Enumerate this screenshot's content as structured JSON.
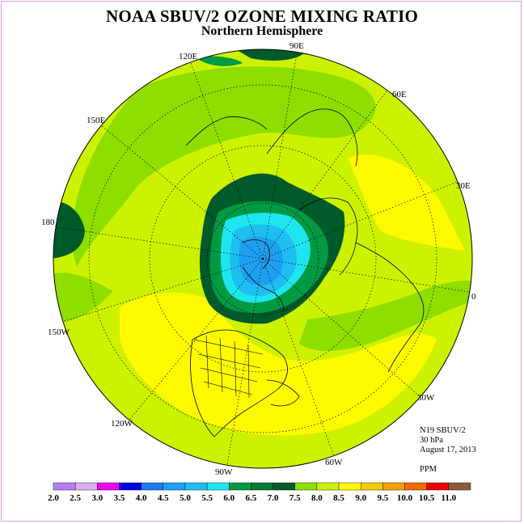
{
  "header": {
    "title": "NOAA SBUV/2 OZONE MIXING RATIO",
    "subtitle": "Northern Hemisphere"
  },
  "map": {
    "projection": "north-polar-stereographic",
    "longitude_labels": [
      "90E",
      "60E",
      "30E",
      "0",
      "30W",
      "60W",
      "90W",
      "120W",
      "150W",
      "180",
      "150E",
      "120E"
    ]
  },
  "info": {
    "satellite": "N19 SBUV/2",
    "level": "30 hPa",
    "date": "August 17, 2013",
    "units": "PPM"
  },
  "colorbar": {
    "labels": [
      "2.0",
      "2.5",
      "3.0",
      "3.5",
      "4.0",
      "4.5",
      "5.0",
      "5.5",
      "6.0",
      "6.5",
      "7.0",
      "7.5",
      "8.0",
      "8.5",
      "9.0",
      "9.5",
      "10.0",
      "10.5",
      "11.0"
    ],
    "colors": [
      "#b57ef2",
      "#d9b0f2",
      "#f000f0",
      "#0000e0",
      "#1e78f0",
      "#1ea0f0",
      "#1ebef0",
      "#1ee6f0",
      "#009a42",
      "#007a36",
      "#005a2a",
      "#8ede00",
      "#cdf200",
      "#fffa00",
      "#f4cc00",
      "#f4a000",
      "#f46a00",
      "#f00000",
      "#8a5a3c"
    ]
  },
  "chart_data": {
    "type": "heatmap",
    "title": "NOAA SBUV/2 OZONE MIXING RATIO",
    "subtitle": "Northern Hemisphere",
    "units": "PPM",
    "level": "30 hPa",
    "date": "August 17, 2013",
    "legend_placement": "bottom",
    "levels": [
      2.0,
      2.5,
      3.0,
      3.5,
      4.0,
      4.5,
      5.0,
      5.5,
      6.0,
      6.5,
      7.0,
      7.5,
      8.0,
      8.5,
      9.0,
      9.5,
      10.0,
      10.5,
      11.0
    ],
    "regions": [
      {
        "area": "north-pole",
        "range": [
          4.5,
          5.0
        ]
      },
      {
        "area": "arctic-inner",
        "range": [
          5.0,
          5.5
        ]
      },
      {
        "area": "arctic-ring",
        "range": [
          5.5,
          6.0
        ]
      },
      {
        "area": "high-latitude-belt",
        "range": [
          6.0,
          7.0
        ]
      },
      {
        "area": "mid-latitudes",
        "range": [
          7.5,
          8.0
        ]
      },
      {
        "area": "subtropics",
        "range": [
          8.0,
          8.5
        ]
      }
    ]
  }
}
